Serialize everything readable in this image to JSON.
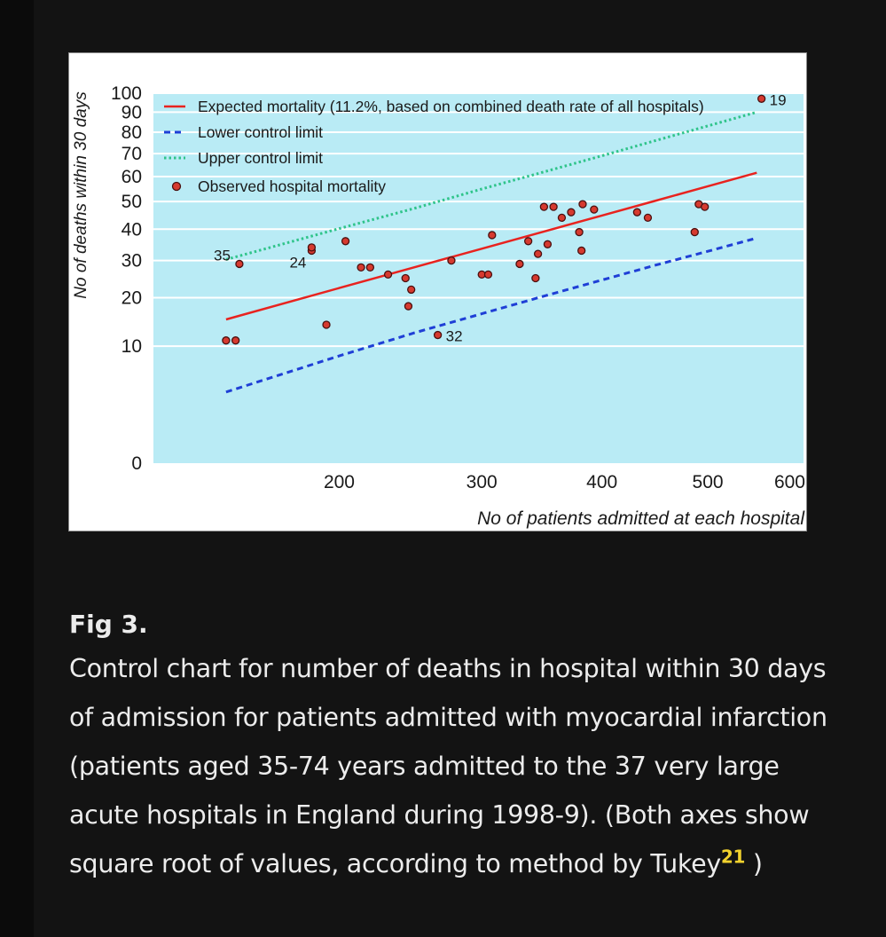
{
  "figure": {
    "label": "Fig 3.",
    "caption_text": "Control chart for number of deaths in hospital within 30 days of admission for patients admitted with myocardial infarction (patients aged 35-74 years admitted to the 37 very large acute hospitals in England during 1998-9). (Both axes show square root of values, according to method by Tukey",
    "caption_ref": "21",
    "caption_close": " )"
  },
  "chart_data": {
    "type": "scatter",
    "xlabel": "No of patients admitted at each hospital",
    "ylabel": "No of deaths within 30 days",
    "x_scale": "sqrt",
    "y_scale": "sqrt",
    "xlim": [
      100,
      600
    ],
    "ylim": [
      0,
      100
    ],
    "x_ticks": [
      200,
      300,
      400,
      500,
      600
    ],
    "y_ticks": [
      0,
      10,
      20,
      30,
      40,
      50,
      60,
      70,
      80,
      90,
      100
    ],
    "grid": true,
    "legend_position": "top-left",
    "colors": {
      "plot_background": "#b9ebf5",
      "expected": "#e8231f",
      "lower": "#1f3fd6",
      "upper": "#2fc48a",
      "observed_fill": "#d63a2f",
      "observed_edge": "#4a1010"
    },
    "legend": [
      {
        "key": "expected",
        "label": "Expected mortality (11.2%, based on combined death rate of all hospitals)",
        "style": "solid-line"
      },
      {
        "key": "lower",
        "label": "Lower control limit",
        "style": "dashed-line"
      },
      {
        "key": "upper",
        "label": "Upper control limit",
        "style": "dotted-line"
      },
      {
        "key": "observed",
        "label": "Observed hospital mortality",
        "style": "marker"
      }
    ],
    "series": [
      {
        "name": "Expected mortality (11.2%, based on combined death rate of all hospitals)",
        "key": "expected",
        "x": [
          135,
          200,
          250,
          300,
          350,
          400,
          450,
          500,
          550
        ],
        "y": [
          15.1,
          22.4,
          28,
          33.6,
          39.2,
          44.8,
          50.4,
          56,
          61.6
        ]
      },
      {
        "name": "Lower control limit",
        "key": "lower",
        "x": [
          135,
          200,
          250,
          300,
          350,
          400,
          450,
          500,
          550
        ],
        "y": [
          3.7,
          8.4,
          12.4,
          16.3,
          20.4,
          24.5,
          28.7,
          32.8,
          37
        ]
      },
      {
        "name": "Upper control limit",
        "key": "upper",
        "x": [
          135,
          200,
          250,
          300,
          350,
          400,
          450,
          500,
          550
        ],
        "y": [
          30.3,
          40.2,
          47.4,
          54.9,
          62,
          69,
          76.1,
          83.1,
          90
        ]
      }
    ],
    "points": [
      {
        "x": 135,
        "y": 11,
        "label": ""
      },
      {
        "x": 140,
        "y": 11,
        "label": ""
      },
      {
        "x": 142,
        "y": 29,
        "label": "35"
      },
      {
        "x": 183,
        "y": 33,
        "label": "24"
      },
      {
        "x": 183,
        "y": 34,
        "label": ""
      },
      {
        "x": 192,
        "y": 14,
        "label": ""
      },
      {
        "x": 204,
        "y": 36,
        "label": ""
      },
      {
        "x": 214,
        "y": 28,
        "label": ""
      },
      {
        "x": 220,
        "y": 28,
        "label": ""
      },
      {
        "x": 232,
        "y": 26,
        "label": ""
      },
      {
        "x": 244,
        "y": 25,
        "label": ""
      },
      {
        "x": 246,
        "y": 18,
        "label": ""
      },
      {
        "x": 248,
        "y": 22,
        "label": ""
      },
      {
        "x": 267,
        "y": 12,
        "label": "32"
      },
      {
        "x": 277,
        "y": 30,
        "label": ""
      },
      {
        "x": 300,
        "y": 26,
        "label": ""
      },
      {
        "x": 305,
        "y": 26,
        "label": ""
      },
      {
        "x": 308,
        "y": 38,
        "label": ""
      },
      {
        "x": 330,
        "y": 29,
        "label": ""
      },
      {
        "x": 337,
        "y": 36,
        "label": ""
      },
      {
        "x": 343,
        "y": 25,
        "label": ""
      },
      {
        "x": 345,
        "y": 32,
        "label": ""
      },
      {
        "x": 350,
        "y": 48,
        "label": ""
      },
      {
        "x": 353,
        "y": 35,
        "label": ""
      },
      {
        "x": 358,
        "y": 48,
        "label": ""
      },
      {
        "x": 365,
        "y": 44,
        "label": ""
      },
      {
        "x": 373,
        "y": 46,
        "label": ""
      },
      {
        "x": 380,
        "y": 39,
        "label": ""
      },
      {
        "x": 382,
        "y": 33,
        "label": ""
      },
      {
        "x": 383,
        "y": 49,
        "label": ""
      },
      {
        "x": 393,
        "y": 47,
        "label": ""
      },
      {
        "x": 432,
        "y": 46,
        "label": ""
      },
      {
        "x": 442,
        "y": 44,
        "label": ""
      },
      {
        "x": 487,
        "y": 39,
        "label": ""
      },
      {
        "x": 491,
        "y": 49,
        "label": ""
      },
      {
        "x": 497,
        "y": 48,
        "label": ""
      },
      {
        "x": 555,
        "y": 97,
        "label": "19"
      }
    ]
  }
}
